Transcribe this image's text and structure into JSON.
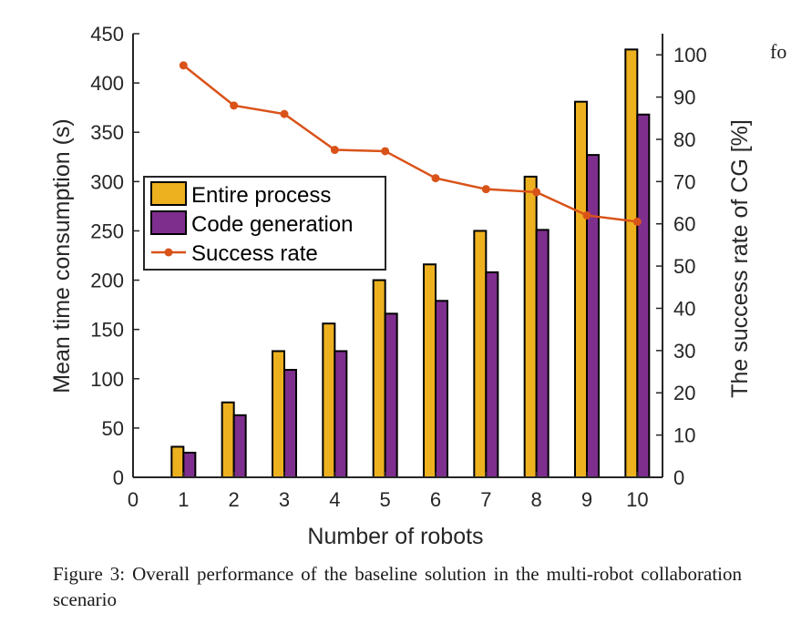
{
  "chart_data": {
    "type": "bar",
    "x": [
      1,
      2,
      3,
      4,
      5,
      6,
      7,
      8,
      9,
      10
    ],
    "xlim": [
      0,
      10.5
    ],
    "xticks": [
      "0",
      "1",
      "2",
      "3",
      "4",
      "5",
      "6",
      "7",
      "8",
      "9",
      "10"
    ],
    "xlabel": "Number of robots",
    "ylabel_left": "Mean time consumption (s)",
    "ylim_left": [
      0,
      450
    ],
    "yticks_left": [
      "0",
      "50",
      "100",
      "150",
      "200",
      "250",
      "300",
      "350",
      "400",
      "450"
    ],
    "ylabel_right": "The success rate of CG [%]",
    "ylim_right": [
      0,
      105
    ],
    "yticks_right": [
      "0",
      "10",
      "20",
      "30",
      "40",
      "50",
      "60",
      "70",
      "80",
      "90",
      "100"
    ],
    "series": [
      {
        "name": "Entire process",
        "type": "bar",
        "axis": "left",
        "color": "#EDB120",
        "values": [
          31,
          76,
          128,
          156,
          200,
          216,
          250,
          305,
          381,
          434
        ]
      },
      {
        "name": "Code generation",
        "type": "bar",
        "axis": "left",
        "color": "#7E2F8E",
        "values": [
          25,
          63,
          109,
          128,
          166,
          179,
          208,
          251,
          327,
          368
        ]
      },
      {
        "name": "Success rate",
        "type": "line",
        "axis": "right",
        "color": "#D95319",
        "values": [
          97.5,
          88,
          86,
          77.5,
          77.2,
          70.8,
          68.2,
          67.5,
          62,
          60.5
        ]
      }
    ],
    "legend_position": "upper-left, inside plot"
  },
  "caption": "Figure 3: Overall performance of the baseline solution in the multi-robot collaboration scenario",
  "side_text": "fo"
}
